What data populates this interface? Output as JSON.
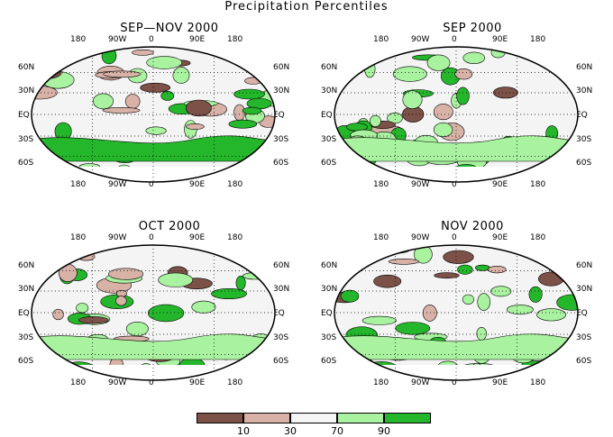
{
  "figure_title": "Precipitation Percentiles",
  "lon_labels": [
    "180",
    "90W",
    "0",
    "90E",
    "180"
  ],
  "lat_labels_left": [
    "60N",
    "30N",
    "EQ",
    "30S",
    "60S"
  ],
  "lat_labels_right": [
    "60N",
    "30N",
    "EQ",
    "30S",
    "60S"
  ],
  "maps": [
    {
      "id": "sep-nov",
      "title": "SEP—NOV 2000"
    },
    {
      "id": "sep",
      "title": "SEP 2000"
    },
    {
      "id": "oct",
      "title": "OCT 2000"
    },
    {
      "id": "nov",
      "title": "NOV 2000"
    }
  ],
  "legend": {
    "colors": [
      "#7b5148",
      "#d8b2a7",
      "#f4f4f4",
      "#a9f2a0",
      "#25b72b"
    ],
    "ticks": [
      "10",
      "30",
      "70",
      "90"
    ]
  }
}
